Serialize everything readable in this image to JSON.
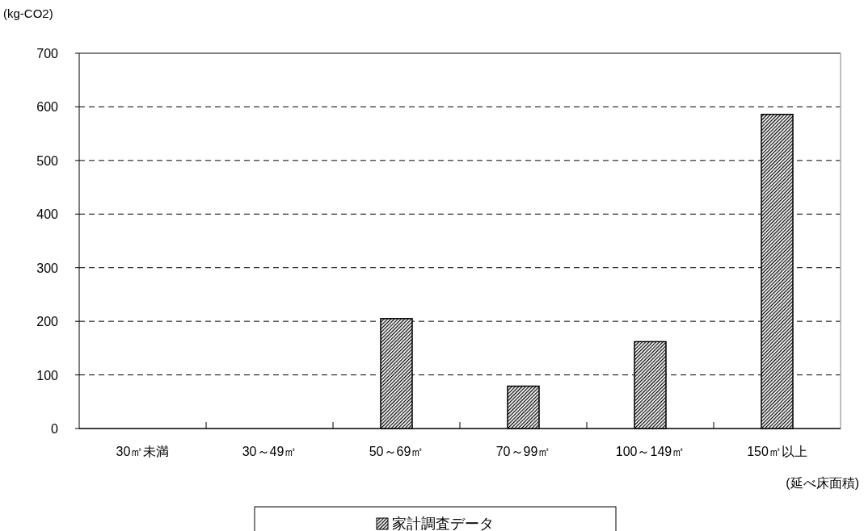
{
  "chart_data": {
    "type": "bar",
    "ylabel": "(kg-CO2)",
    "xlabel": "(延べ床面積)",
    "categories": [
      "30㎡未満",
      "30～49㎡",
      "50～69㎡",
      "70～99㎡",
      "100～149㎡",
      "150㎡以上"
    ],
    "series": [
      {
        "name": "家計調査データ",
        "color": "#000000",
        "values": [
          null,
          null,
          205,
          79,
          162,
          586
        ]
      }
    ],
    "ylim": [
      0,
      700
    ],
    "yticks": [
      0,
      100,
      200,
      300,
      400,
      500,
      600,
      700
    ],
    "grid": "y",
    "legend": "bottom"
  }
}
